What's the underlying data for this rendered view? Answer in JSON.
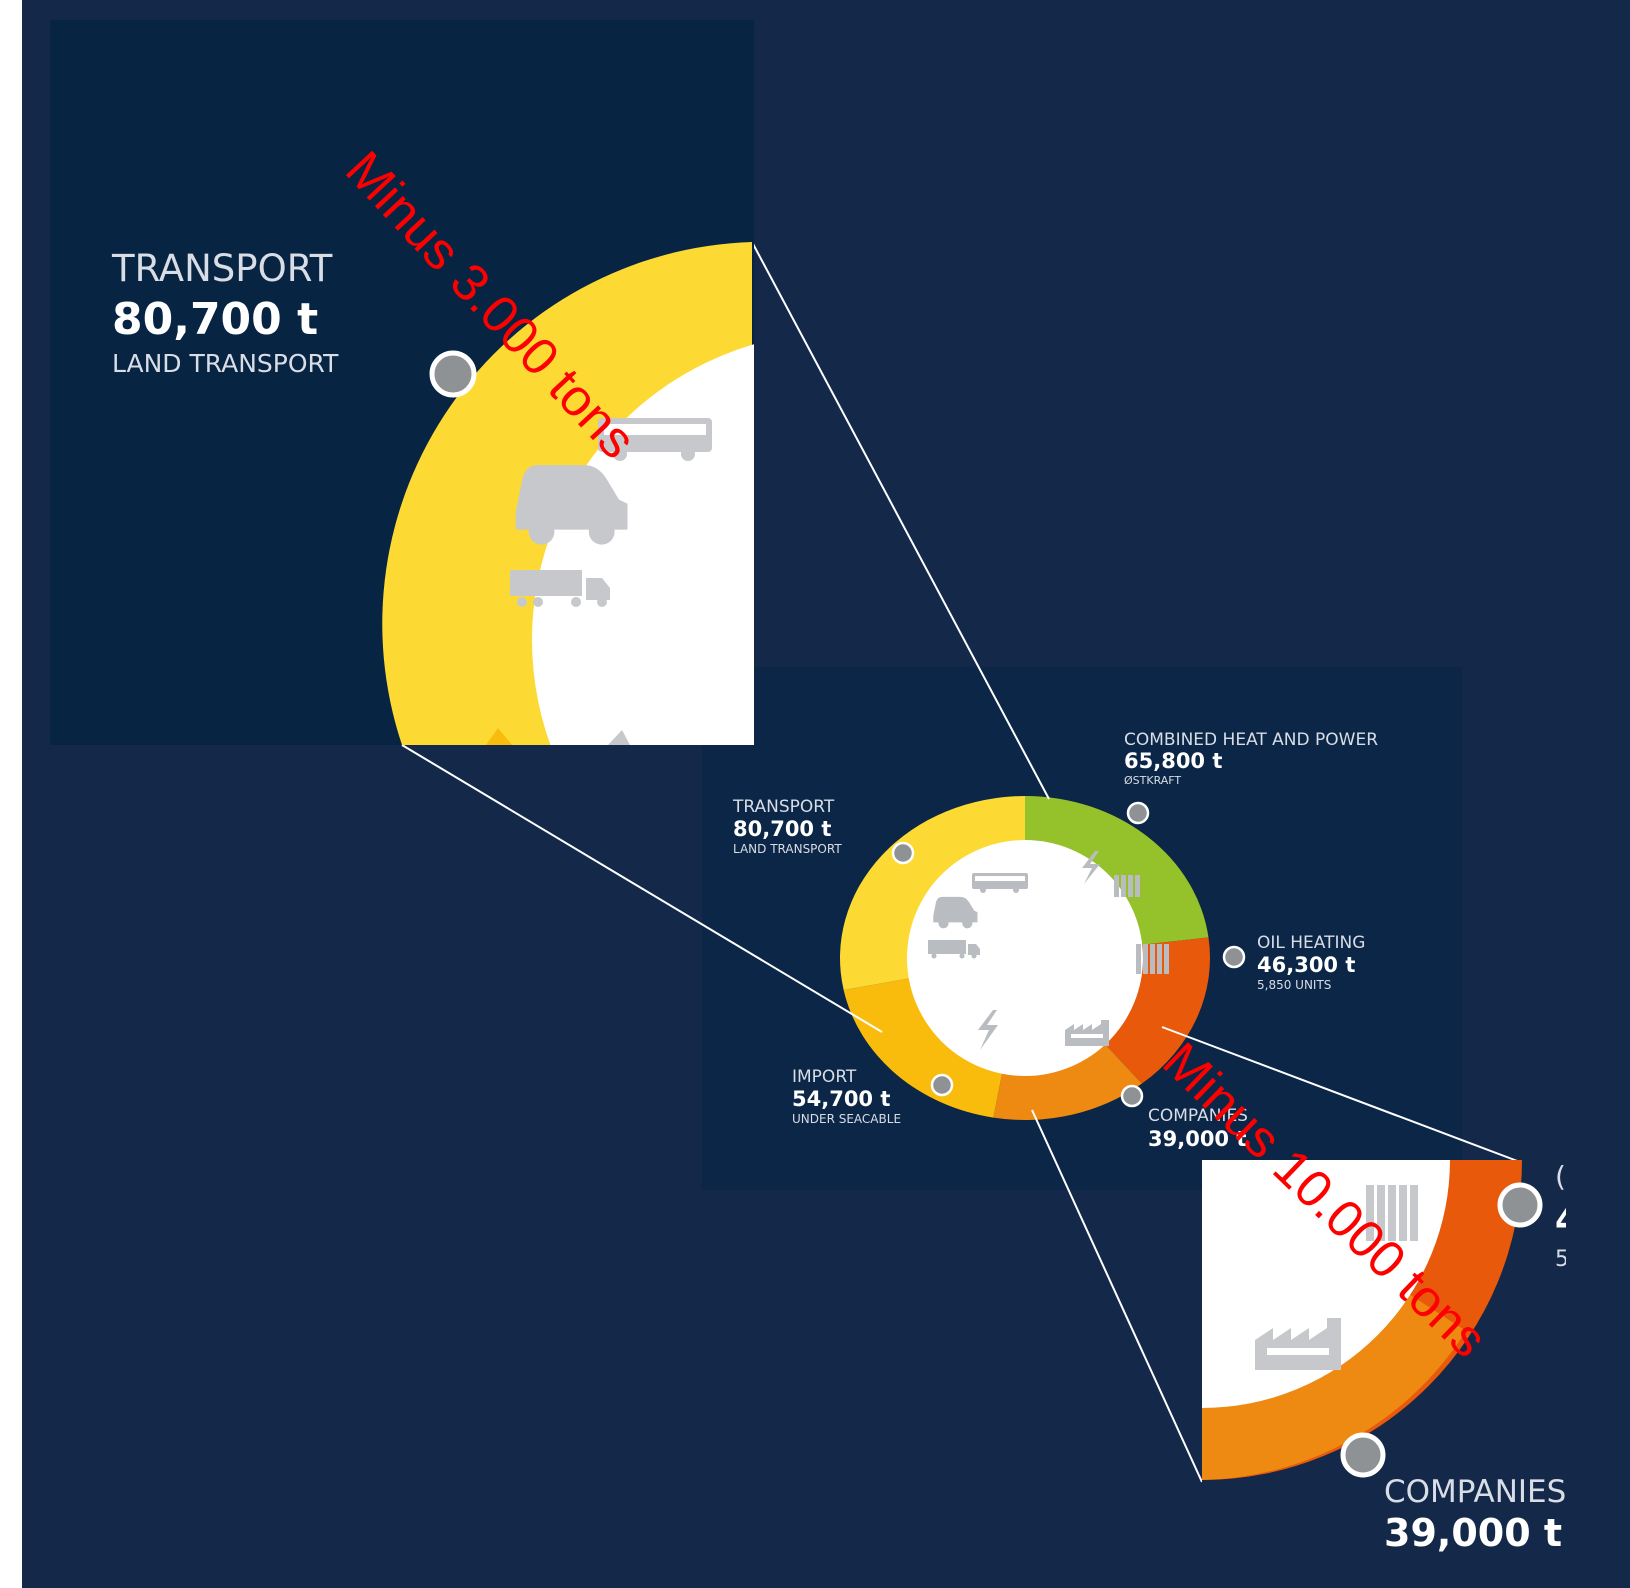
{
  "colors": {
    "background": "#14284a",
    "panel": "#0b2646",
    "white": "#ffffff",
    "text": "#d8dde6",
    "connector": "#ffffff",
    "annotation": "#ff0000",
    "dot": "#8f9295",
    "icon": "#b9bcc0"
  },
  "chart_data": {
    "type": "pie",
    "variant": "donut",
    "unit": "t",
    "segments": [
      {
        "label": "COMBINED HEAT AND POWER",
        "value": 65800,
        "display": "65,800 t",
        "sub": "ØSTKRAFT",
        "color": "#95c12b"
      },
      {
        "label": "OIL HEATING",
        "value": 46300,
        "display": "46,300 t",
        "sub": "5,850 UNITS",
        "color": "#e8590c"
      },
      {
        "label": "COMPANIES",
        "value": 39000,
        "display": "39,000 t",
        "sub": "",
        "color": "#ee8a12"
      },
      {
        "label": "IMPORT",
        "value": 54700,
        "display": "54,700 t",
        "sub": "UNDER SEACABLE",
        "color": "#f9bc0c"
      },
      {
        "label": "TRANSPORT",
        "value": 80700,
        "display": "80,700 t",
        "sub": "LAND TRANSPORT",
        "color": "#fdd934"
      }
    ],
    "zoom_callouts": [
      {
        "target": "TRANSPORT",
        "label": "TRANSPORT",
        "value": "80,700 t",
        "sub": "LAND TRANSPORT",
        "annotation": "Minus 3.000 tons"
      },
      {
        "target": "COMPANIES",
        "label": "COMPANIES",
        "value": "39,000 t",
        "annotation": "Minus 10.000 tons"
      }
    ],
    "cropped_text": {
      "companies_value_partial": "39,000 t",
      "oil_label_partial": "(",
      "oil_value_partial": "4",
      "oil_sub_partial": "5"
    }
  }
}
